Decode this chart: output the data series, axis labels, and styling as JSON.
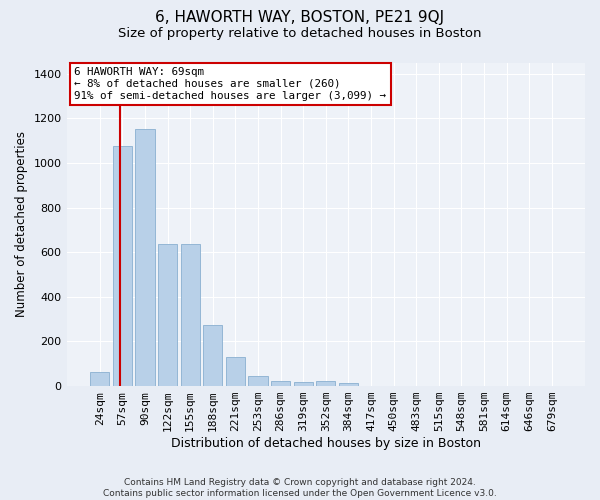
{
  "title": "6, HAWORTH WAY, BOSTON, PE21 9QJ",
  "subtitle": "Size of property relative to detached houses in Boston",
  "xlabel": "Distribution of detached houses by size in Boston",
  "ylabel": "Number of detached properties",
  "categories": [
    "24sqm",
    "57sqm",
    "90sqm",
    "122sqm",
    "155sqm",
    "188sqm",
    "221sqm",
    "253sqm",
    "286sqm",
    "319sqm",
    "352sqm",
    "384sqm",
    "417sqm",
    "450sqm",
    "483sqm",
    "515sqm",
    "548sqm",
    "581sqm",
    "614sqm",
    "646sqm",
    "679sqm"
  ],
  "values": [
    65,
    1075,
    1150,
    635,
    635,
    275,
    130,
    47,
    22,
    18,
    22,
    14,
    0,
    0,
    0,
    0,
    0,
    0,
    0,
    0,
    0
  ],
  "bar_color": "#b8d0e8",
  "bar_edge_color": "#8ab0d0",
  "vline_color": "#cc0000",
  "vline_x": 0.9,
  "annotation_text": "6 HAWORTH WAY: 69sqm\n← 8% of detached houses are smaller (260)\n91% of semi-detached houses are larger (3,099) →",
  "annotation_box_color": "#ffffff",
  "annotation_box_edge_color": "#cc0000",
  "ylim": [
    0,
    1450
  ],
  "yticks": [
    0,
    200,
    400,
    600,
    800,
    1000,
    1200,
    1400
  ],
  "bg_color": "#e8edf5",
  "plot_bg_color": "#eef2f8",
  "footer": "Contains HM Land Registry data © Crown copyright and database right 2024.\nContains public sector information licensed under the Open Government Licence v3.0.",
  "title_fontsize": 11,
  "subtitle_fontsize": 9.5,
  "xlabel_fontsize": 9,
  "ylabel_fontsize": 8.5,
  "tick_fontsize": 8,
  "footer_fontsize": 6.5
}
